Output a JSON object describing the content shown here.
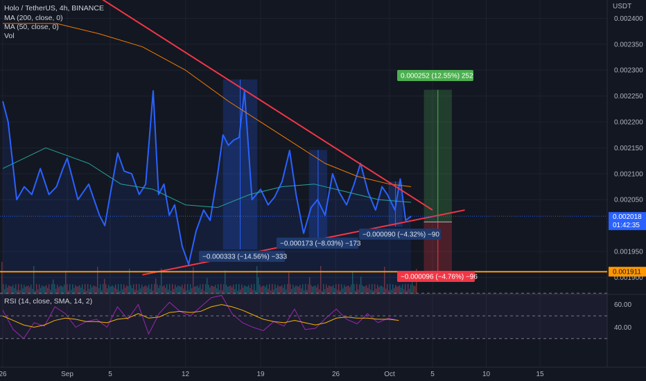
{
  "legend": {
    "symbol": "Holo / TetherUS, 4h, BINANCE",
    "ma200": "MA (200, close, 0)",
    "ma50": "MA (50, close, 0)",
    "vol": "Vol",
    "rsi": "RSI (14, close, SMA, 14, 2)"
  },
  "price_axis": {
    "currency": "USDT",
    "ticks": [
      "0.002400",
      "0.002350",
      "0.002300",
      "0.002250",
      "0.002200",
      "0.002150",
      "0.002100",
      "0.002050",
      "0.001950",
      "0.001900"
    ],
    "last_price": "0.002018",
    "countdown": "01:42:35",
    "support_level": "0.001911"
  },
  "rsi_axis": {
    "ticks": [
      "60.00",
      "40.00"
    ]
  },
  "time_axis": {
    "ticks": [
      "26",
      "Sep",
      "5",
      "12",
      "19",
      "26",
      "Oct",
      "5",
      "10",
      "15"
    ]
  },
  "measurements": [
    "−0.000333 (−14.56%) −333",
    "−0.000173 (−8.03%) −173",
    "−0.000090 (−4.32%) −90"
  ],
  "position": {
    "target_label": "0.000252 (12.55%) 252",
    "stop_label": "−0.000096 (−4.76%) −96"
  },
  "colors": {
    "background": "#131722",
    "price_line": "#2962ff",
    "ma200": "#f57c00",
    "ma50": "#26a69a",
    "trendline": "#f23645",
    "support": "#ff9800",
    "rsi": "#9c27b0",
    "rsi_ma": "#f7b500",
    "target": "#4caf50",
    "stop": "#f23645",
    "last_price_tag": "#2962ff"
  },
  "chart_data": {
    "type": "line",
    "title": "Holo / TetherUS, 4h, BINANCE",
    "ylabel": "USDT",
    "ylim": [
      0.00188,
      0.00243
    ],
    "x_axis": "days since Aug 26 (tick at 6 = Sep 1)",
    "xlim": [
      0,
      50
    ],
    "series": [
      {
        "name": "Holo / TetherUS",
        "x": [
          0,
          0.5,
          1.3,
          2,
          2.7,
          3.5,
          4.3,
          5,
          5.6,
          6,
          7,
          8,
          9,
          9.5,
          10,
          10.7,
          11.3,
          12,
          12.7,
          13.3,
          14,
          14.5,
          15,
          15.5,
          16,
          16.7,
          17.3,
          18,
          18.7,
          19.3,
          20,
          20.5,
          21,
          21.5,
          22,
          22.5,
          23.2,
          24,
          24.7,
          25.3,
          26,
          26.7,
          27.3,
          28,
          28.7,
          29.3,
          30,
          30.7,
          31.3,
          32,
          32.7,
          33.3,
          34,
          34.7,
          35.3,
          35.8,
          36.5,
          37,
          37.5,
          38
        ],
        "y": [
          0.00224,
          0.0022,
          0.00205,
          0.002075,
          0.00206,
          0.00211,
          0.00206,
          0.002075,
          0.00211,
          0.00213,
          0.00205,
          0.00208,
          0.00202,
          0.002,
          0.00206,
          0.00214,
          0.002105,
          0.0021,
          0.00206,
          0.00208,
          0.00226,
          0.00206,
          0.00208,
          0.00202,
          0.00204,
          0.00196,
          0.001925,
          0.00199,
          0.00203,
          0.00201,
          0.0021,
          0.002175,
          0.002155,
          0.002165,
          0.00217,
          0.00226,
          0.00205,
          0.00207,
          0.00204,
          0.002055,
          0.002085,
          0.002145,
          0.00206,
          0.001985,
          0.002035,
          0.00205,
          0.00202,
          0.0021,
          0.002065,
          0.00204,
          0.00208,
          0.00212,
          0.002065,
          0.00203,
          0.002075,
          0.00206,
          0.00203,
          0.00209,
          0.00201,
          0.002018
        ]
      },
      {
        "name": "MA (200, close, 0)",
        "x": [
          0,
          5,
          9,
          13,
          17,
          21,
          24,
          27,
          30,
          33,
          36,
          38
        ],
        "y": [
          0.00239,
          0.00239,
          0.00237,
          0.002345,
          0.0023,
          0.00224,
          0.0022,
          0.00216,
          0.00212,
          0.002095,
          0.00208,
          0.002075
        ]
      },
      {
        "name": "MA (50, close, 0)",
        "x": [
          0,
          4,
          8,
          11,
          14,
          17,
          20,
          23,
          26,
          29,
          32,
          35,
          38
        ],
        "y": [
          0.00211,
          0.00215,
          0.00212,
          0.00208,
          0.00207,
          0.00204,
          0.002035,
          0.00206,
          0.002075,
          0.00208,
          0.002065,
          0.00205,
          0.002045
        ]
      }
    ],
    "lines": [
      {
        "name": "descending trendline",
        "from": [
          9,
          0.00244
        ],
        "to": [
          40,
          0.00203
        ]
      },
      {
        "name": "ascending trendline",
        "from": [
          13,
          0.001905
        ],
        "to": [
          43,
          0.00203
        ]
      },
      {
        "name": "support",
        "value": 0.001911
      }
    ],
    "rsi": {
      "name": "RSI (14, close, SMA, 14, 2)",
      "bands": [
        70,
        30
      ],
      "ticks": [
        60,
        40
      ],
      "x": [
        0,
        1,
        2,
        3,
        4,
        5,
        6,
        7,
        8,
        9,
        10,
        11,
        12,
        13,
        14,
        15,
        16,
        17,
        18,
        19,
        20,
        21,
        22,
        23,
        24,
        25,
        26,
        27,
        28,
        29,
        30,
        31,
        32,
        33,
        34,
        35,
        36,
        37,
        38
      ],
      "values": [
        55,
        38,
        30,
        44,
        41,
        58,
        52,
        40,
        45,
        47,
        40,
        58,
        47,
        60,
        34,
        52,
        62,
        54,
        50,
        58,
        66,
        68,
        52,
        44,
        40,
        37,
        45,
        41,
        56,
        38,
        39,
        48,
        56,
        47,
        43,
        52,
        44,
        48,
        46
      ],
      "ma": [
        50,
        46,
        42,
        40,
        42,
        46,
        48,
        47,
        45,
        45,
        44,
        47,
        48,
        52,
        48,
        49,
        53,
        54,
        53,
        54,
        58,
        60,
        58,
        55,
        51,
        47,
        45,
        44,
        46,
        44,
        42,
        44,
        48,
        49,
        48,
        48,
        47,
        47,
        46
      ]
    }
  }
}
